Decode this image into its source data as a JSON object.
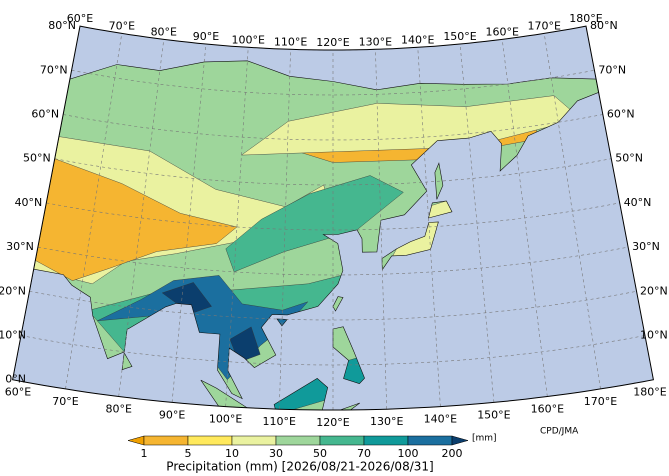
{
  "map": {
    "lon_labels_top": [
      {
        "value": 60,
        "label": "60°E"
      },
      {
        "value": 70,
        "label": "70°E"
      },
      {
        "value": 80,
        "label": "80°E"
      },
      {
        "value": 90,
        "label": "90°E"
      },
      {
        "value": 100,
        "label": "100°E"
      },
      {
        "value": 110,
        "label": "110°E"
      },
      {
        "value": 120,
        "label": "120°E"
      },
      {
        "value": 130,
        "label": "130°E"
      },
      {
        "value": 140,
        "label": "140°E"
      },
      {
        "value": 150,
        "label": "150°E"
      },
      {
        "value": 160,
        "label": "160°E"
      },
      {
        "value": 170,
        "label": "170°E"
      },
      {
        "value": 180,
        "label": "180°E"
      }
    ],
    "lon_labels_bottom": [
      {
        "value": 60,
        "label": "60°E"
      },
      {
        "value": 70,
        "label": "70°E"
      },
      {
        "value": 80,
        "label": "80°E"
      },
      {
        "value": 90,
        "label": "90°E"
      },
      {
        "value": 100,
        "label": "100°E"
      },
      {
        "value": 110,
        "label": "110°E"
      },
      {
        "value": 120,
        "label": "120°E"
      },
      {
        "value": 130,
        "label": "130°E"
      },
      {
        "value": 140,
        "label": "140°E"
      },
      {
        "value": 150,
        "label": "150°E"
      },
      {
        "value": 160,
        "label": "160°E"
      },
      {
        "value": 170,
        "label": "170°E"
      },
      {
        "value": 180,
        "label": "180°E"
      }
    ],
    "lat_labels_left": [
      {
        "value": 0,
        "label": "0°N"
      },
      {
        "value": 10,
        "label": "10°N"
      },
      {
        "value": 20,
        "label": "20°N"
      },
      {
        "value": 30,
        "label": "30°N"
      },
      {
        "value": 40,
        "label": "40°N"
      },
      {
        "value": 50,
        "label": "50°N"
      },
      {
        "value": 60,
        "label": "60°N"
      },
      {
        "value": 70,
        "label": "70°N"
      },
      {
        "value": 80,
        "label": "80°N"
      }
    ],
    "lat_labels_right": [
      {
        "value": 10,
        "label": "10°N"
      },
      {
        "value": 20,
        "label": "20°N"
      },
      {
        "value": 30,
        "label": "30°N"
      },
      {
        "value": 40,
        "label": "40°N"
      },
      {
        "value": 50,
        "label": "50°N"
      },
      {
        "value": 60,
        "label": "60°N"
      },
      {
        "value": 70,
        "label": "70°N"
      },
      {
        "value": 80,
        "label": "80°N"
      }
    ],
    "credit": "CPD/JMA"
  },
  "legend": {
    "title": "Precipitation (mm) [2026/08/21-2026/08/31]",
    "unit": "[mm]",
    "ticks": [
      1,
      5,
      10,
      30,
      50,
      70,
      100,
      200
    ],
    "colors": [
      "#f0a000",
      "#f5b531",
      "#ffe95c",
      "#eaf2a0",
      "#9ed69b",
      "#45b78f",
      "#109a9a",
      "#1b6f9f",
      "#0b3e6d"
    ]
  }
}
